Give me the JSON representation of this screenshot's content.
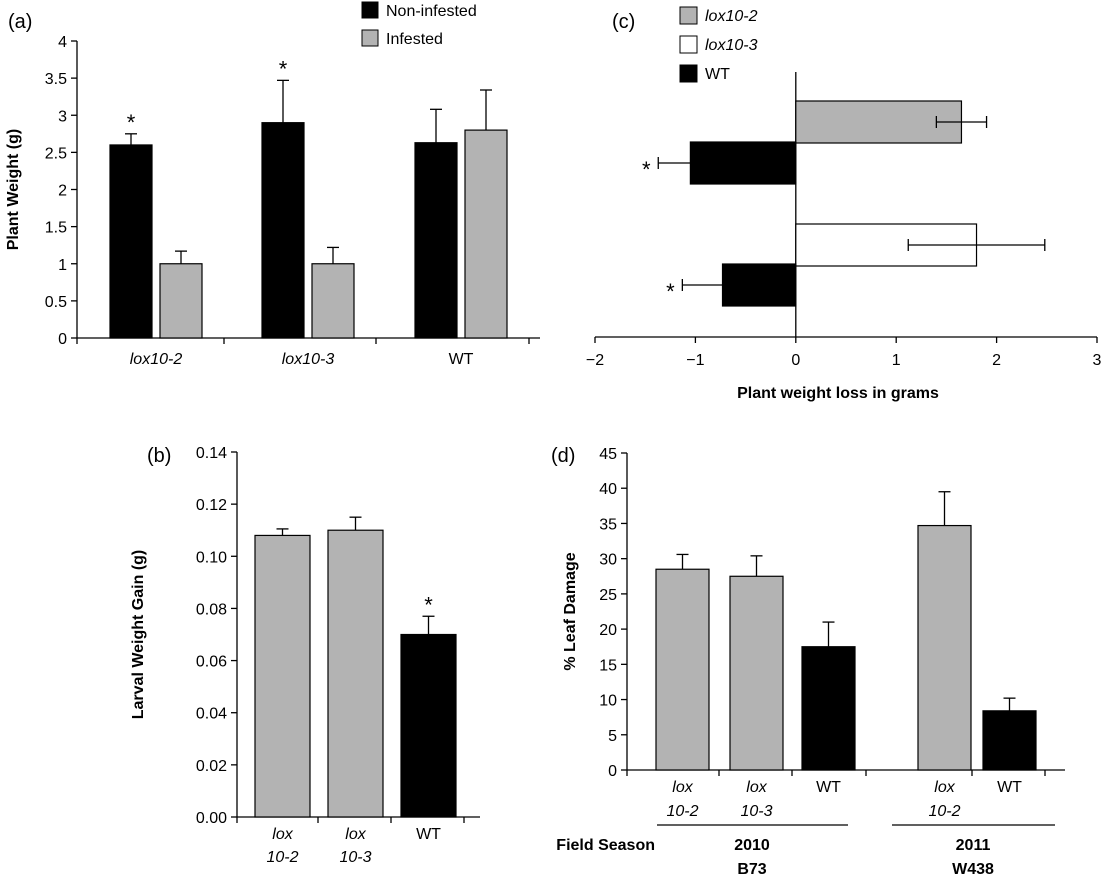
{
  "colors": {
    "black": "#000000",
    "gray": "#b3b3b3",
    "white": "#ffffff"
  },
  "chart_data": [
    {
      "panel": "(a)",
      "type": "bar",
      "ylabel": "Plant Weight (g)",
      "ylim": [
        0,
        4
      ],
      "yticks": [
        "0",
        "0.5",
        "1",
        "1.5",
        "2",
        "2.5",
        "3",
        "3.5",
        "4"
      ],
      "categories": [
        "lox10-2",
        "lox10-3",
        "WT"
      ],
      "series": [
        {
          "name": "Non-infested",
          "color": "#000000",
          "values": [
            2.6,
            2.9,
            2.63
          ],
          "errors": [
            0.15,
            0.57,
            0.45
          ],
          "stars": [
            true,
            true,
            false
          ]
        },
        {
          "name": "Infested",
          "color": "#b3b3b3",
          "values": [
            1.0,
            1.0,
            2.8
          ],
          "errors": [
            0.17,
            0.22,
            0.54
          ],
          "stars": [
            false,
            false,
            false
          ]
        }
      ],
      "legend": "top-center"
    },
    {
      "panel": "(b)",
      "type": "bar",
      "ylabel": "Larval Weight Gain (g)",
      "ylim": [
        0,
        0.14
      ],
      "yticks": [
        "0.00",
        "0.02",
        "0.04",
        "0.06",
        "0.08",
        "0.10",
        "0.12",
        "0.14"
      ],
      "categories": [
        {
          "line1": "lox",
          "line2": "10-2",
          "italic": true
        },
        {
          "line1": "lox",
          "line2": "10-3",
          "italic": true
        },
        {
          "line1": "WT",
          "line2": "",
          "italic": false
        }
      ],
      "values": [
        0.108,
        0.11,
        0.07
      ],
      "errors": [
        0.0025,
        0.005,
        0.007
      ],
      "colors": [
        "#b3b3b3",
        "#b3b3b3",
        "#000000"
      ],
      "stars": [
        false,
        false,
        true
      ]
    },
    {
      "panel": "(c)",
      "type": "bar",
      "orientation": "horizontal",
      "xlabel": "Plant weight loss in grams",
      "xlim": [
        -2,
        3
      ],
      "xticks": [
        "−2",
        "−1",
        "0",
        "1",
        "2",
        "3"
      ],
      "series_legend": [
        {
          "name": "lox10-2",
          "color": "#b3b3b3",
          "italic": true
        },
        {
          "name": "lox10-3",
          "color": "#ffffff",
          "italic": true
        },
        {
          "name": "WT",
          "color": "#000000",
          "italic": false
        }
      ],
      "bars": [
        {
          "series": "lox10-2",
          "value": 1.65,
          "error": 0.25,
          "color": "#b3b3b3",
          "star": false
        },
        {
          "series": "WT",
          "value": -1.05,
          "error": 0.32,
          "color": "#000000",
          "star": true
        },
        {
          "series": "lox10-3",
          "value": 1.8,
          "error": 0.68,
          "color": "#ffffff",
          "star": false
        },
        {
          "series": "WT",
          "value": -0.73,
          "error": 0.4,
          "color": "#000000",
          "star": true
        }
      ]
    },
    {
      "panel": "(d)",
      "type": "bar",
      "ylabel": "% Leaf Damage",
      "ylim": [
        0,
        45
      ],
      "yticks": [
        "0",
        "5",
        "10",
        "15",
        "20",
        "25",
        "30",
        "35",
        "40",
        "45"
      ],
      "bars": [
        {
          "line1": "lox",
          "line2": "10-2",
          "italic": true,
          "value": 28.5,
          "error": 2.1,
          "color": "#b3b3b3"
        },
        {
          "line1": "lox",
          "line2": "10-3",
          "italic": true,
          "value": 27.5,
          "error": 2.9,
          "color": "#b3b3b3"
        },
        {
          "line1": "WT",
          "line2": "",
          "italic": false,
          "value": 17.5,
          "error": 3.5,
          "color": "#000000"
        },
        {
          "line1": "lox",
          "line2": "10-2",
          "italic": true,
          "value": 34.7,
          "error": 4.8,
          "color": "#b3b3b3"
        },
        {
          "line1": "WT",
          "line2": "",
          "italic": false,
          "value": 8.4,
          "error": 1.8,
          "color": "#000000"
        }
      ],
      "field_season_label": "Field Season",
      "groups": [
        {
          "year": "2010",
          "line": "B73"
        },
        {
          "year": "2011",
          "line": "W438"
        }
      ]
    }
  ]
}
